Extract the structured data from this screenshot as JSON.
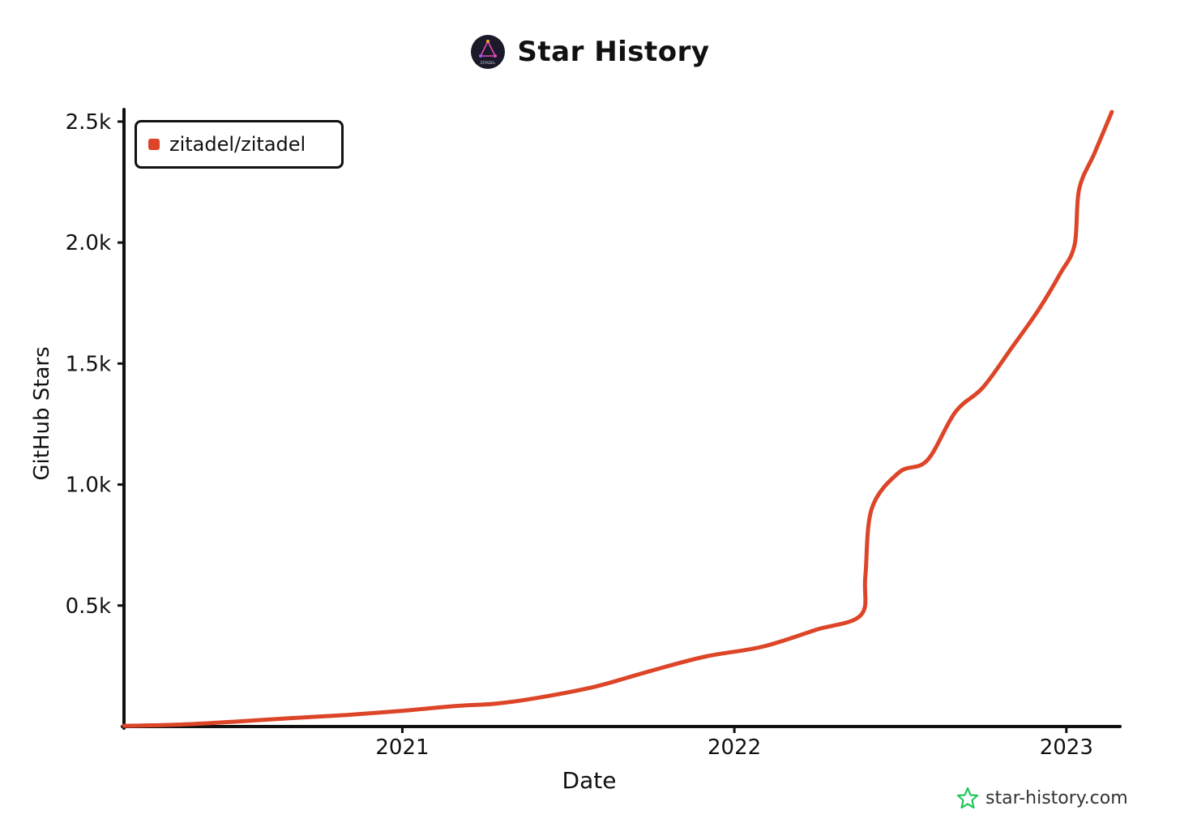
{
  "header": {
    "title": "Star History",
    "logo_text": "ZITADEL"
  },
  "watermark": "star-history.com",
  "colors": {
    "series": "#dd4528",
    "axis": "#111111",
    "watermark_icon": "#22c55e"
  },
  "chart_data": {
    "type": "line",
    "title": "Star History",
    "xlabel": "Date",
    "ylabel": "GitHub Stars",
    "legend_position": "top-left",
    "grid": false,
    "xlim": [
      "2020-03-01",
      "2023-03-01"
    ],
    "ylim": [
      0,
      2550
    ],
    "x_ticks": [
      {
        "value": "2021-01-01",
        "label": "2021"
      },
      {
        "value": "2022-01-01",
        "label": "2022"
      },
      {
        "value": "2023-01-01",
        "label": "2023"
      }
    ],
    "y_ticks": [
      {
        "value": 500,
        "label": "0.5k"
      },
      {
        "value": 1000,
        "label": "1.0k"
      },
      {
        "value": 1500,
        "label": "1.5k"
      },
      {
        "value": 2000,
        "label": "2.0k"
      },
      {
        "value": 2500,
        "label": "2.5k"
      }
    ],
    "series": [
      {
        "name": "zitadel/zitadel",
        "points": [
          {
            "x": "2020-03-01",
            "y": 3
          },
          {
            "x": "2020-05-01",
            "y": 8
          },
          {
            "x": "2020-07-01",
            "y": 20
          },
          {
            "x": "2020-09-01",
            "y": 35
          },
          {
            "x": "2020-11-01",
            "y": 48
          },
          {
            "x": "2021-01-01",
            "y": 65
          },
          {
            "x": "2021-03-01",
            "y": 85
          },
          {
            "x": "2021-04-15",
            "y": 95
          },
          {
            "x": "2021-06-01",
            "y": 120
          },
          {
            "x": "2021-08-01",
            "y": 165
          },
          {
            "x": "2021-10-01",
            "y": 230
          },
          {
            "x": "2021-12-01",
            "y": 290
          },
          {
            "x": "2022-02-01",
            "y": 330
          },
          {
            "x": "2022-04-01",
            "y": 400
          },
          {
            "x": "2022-05-20",
            "y": 460
          },
          {
            "x": "2022-05-25",
            "y": 620
          },
          {
            "x": "2022-06-01",
            "y": 900
          },
          {
            "x": "2022-07-01",
            "y": 1050
          },
          {
            "x": "2022-08-01",
            "y": 1100
          },
          {
            "x": "2022-09-01",
            "y": 1300
          },
          {
            "x": "2022-10-01",
            "y": 1400
          },
          {
            "x": "2022-11-01",
            "y": 1560
          },
          {
            "x": "2022-12-01",
            "y": 1720
          },
          {
            "x": "2022-12-25",
            "y": 1870
          },
          {
            "x": "2023-01-10",
            "y": 1990
          },
          {
            "x": "2023-01-15",
            "y": 2220
          },
          {
            "x": "2023-02-01",
            "y": 2370
          },
          {
            "x": "2023-02-20",
            "y": 2540
          }
        ]
      }
    ]
  }
}
